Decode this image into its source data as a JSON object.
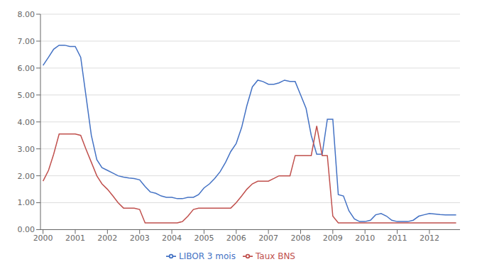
{
  "chart_data": {
    "type": "line",
    "x": [
      2000.0,
      2000.17,
      2000.33,
      2000.5,
      2000.67,
      2000.83,
      2001.0,
      2001.17,
      2001.33,
      2001.5,
      2001.67,
      2001.83,
      2002.0,
      2002.17,
      2002.33,
      2002.5,
      2002.67,
      2002.83,
      2003.0,
      2003.17,
      2003.33,
      2003.5,
      2003.67,
      2003.83,
      2004.0,
      2004.17,
      2004.33,
      2004.5,
      2004.67,
      2004.83,
      2005.0,
      2005.17,
      2005.33,
      2005.5,
      2005.67,
      2005.83,
      2006.0,
      2006.17,
      2006.33,
      2006.5,
      2006.67,
      2006.83,
      2007.0,
      2007.17,
      2007.33,
      2007.5,
      2007.67,
      2007.83,
      2008.0,
      2008.17,
      2008.33,
      2008.5,
      2008.67,
      2008.83,
      2009.0,
      2009.17,
      2009.33,
      2009.5,
      2009.67,
      2009.83,
      2010.0,
      2010.17,
      2010.33,
      2010.5,
      2010.67,
      2010.83,
      2011.0,
      2011.17,
      2011.33,
      2011.5,
      2011.67,
      2011.83,
      2012.0,
      2012.17,
      2012.33,
      2012.5,
      2012.67,
      2012.83
    ],
    "series": [
      {
        "name": "LIBOR 3 mois",
        "color": "#4472C4",
        "values": [
          6.1,
          6.4,
          6.7,
          6.85,
          6.85,
          6.8,
          6.8,
          6.4,
          5.0,
          3.5,
          2.6,
          2.3,
          2.2,
          2.1,
          2.0,
          1.95,
          1.92,
          1.9,
          1.85,
          1.6,
          1.4,
          1.35,
          1.25,
          1.2,
          1.2,
          1.15,
          1.15,
          1.2,
          1.2,
          1.3,
          1.55,
          1.7,
          1.9,
          2.15,
          2.5,
          2.9,
          3.2,
          3.8,
          4.6,
          5.3,
          5.55,
          5.5,
          5.4,
          5.4,
          5.45,
          5.55,
          5.5,
          5.5,
          5.0,
          4.5,
          3.5,
          2.8,
          2.8,
          4.1,
          4.1,
          1.3,
          1.25,
          0.7,
          0.4,
          0.3,
          0.3,
          0.35,
          0.55,
          0.6,
          0.5,
          0.35,
          0.3,
          0.3,
          0.3,
          0.35,
          0.5,
          0.55,
          0.6,
          0.58,
          0.56,
          0.55,
          0.55,
          0.55
        ]
      },
      {
        "name": "Taux BNS",
        "color": "#C0504D",
        "values": [
          1.8,
          2.2,
          2.8,
          3.55,
          3.55,
          3.55,
          3.55,
          3.5,
          3.0,
          2.5,
          2.0,
          1.7,
          1.5,
          1.25,
          1.0,
          0.8,
          0.8,
          0.8,
          0.75,
          0.25,
          0.25,
          0.25,
          0.25,
          0.25,
          0.25,
          0.25,
          0.3,
          0.5,
          0.75,
          0.8,
          0.8,
          0.8,
          0.8,
          0.8,
          0.8,
          0.8,
          1.0,
          1.25,
          1.5,
          1.7,
          1.8,
          1.8,
          1.8,
          1.9,
          2.0,
          2.0,
          2.0,
          2.75,
          2.75,
          2.75,
          2.75,
          3.85,
          2.75,
          2.75,
          0.5,
          0.25,
          0.25,
          0.25,
          0.25,
          0.25,
          0.25,
          0.25,
          0.25,
          0.25,
          0.25,
          0.25,
          0.25,
          0.25,
          0.25,
          0.25,
          0.25,
          0.25,
          0.25,
          0.25,
          0.25,
          0.25,
          0.25,
          0.25
        ]
      }
    ],
    "xlim": [
      1999.92,
      2012.95
    ],
    "xticks": [
      2000,
      2001,
      2002,
      2003,
      2004,
      2005,
      2006,
      2007,
      2008,
      2009,
      2010,
      2011,
      2012
    ],
    "ylim": [
      0.0,
      8.0
    ],
    "yticks": [
      {
        "value": 0,
        "label": "0.00"
      },
      {
        "value": 1,
        "label": "1.00"
      },
      {
        "value": 2,
        "label": "2.00"
      },
      {
        "value": 3,
        "label": "3.00"
      },
      {
        "value": 4,
        "label": "4.00"
      },
      {
        "value": 5,
        "label": "5.00"
      },
      {
        "value": 6,
        "label": "6.00"
      },
      {
        "value": 7,
        "label": "7.00"
      },
      {
        "value": 8,
        "label": "8.00"
      }
    ],
    "grid": true,
    "legend": "bottom"
  }
}
